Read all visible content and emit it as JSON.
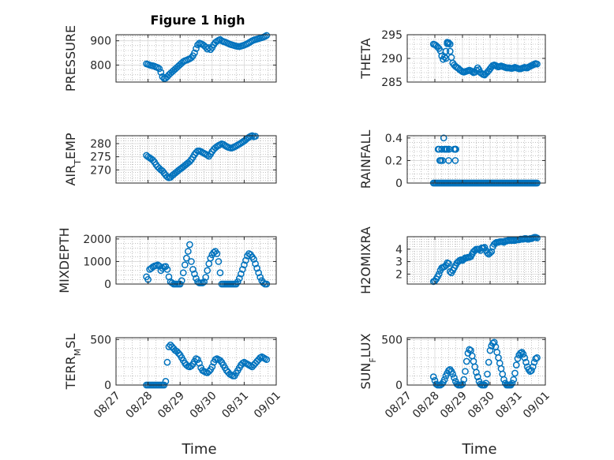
{
  "figure_title": "Figure 1 high",
  "colors": {
    "marker": "#0072BD",
    "axis": "#262626",
    "grid": "#9a9a9a"
  },
  "xticks": [
    "08/27",
    "08/28",
    "08/29",
    "08/30",
    "08/31",
    "09/01"
  ],
  "chart_data": [
    {
      "type": "scatter",
      "title": "Figure 1 high",
      "ylabel": "PRESSURE",
      "ylim": [
        730,
        925
      ],
      "yticks": [
        800,
        900
      ],
      "x": [
        0.95,
        1.0,
        1.05,
        1.1,
        1.15,
        1.2,
        1.25,
        1.3,
        1.35,
        1.4,
        1.45,
        1.5,
        1.55,
        1.6,
        1.65,
        1.7,
        1.75,
        1.8,
        1.85,
        1.9,
        1.95,
        2.0,
        2.05,
        2.1,
        2.15,
        2.2,
        2.25,
        2.3,
        2.35,
        2.4,
        2.45,
        2.5,
        2.55,
        2.6,
        2.65,
        2.7,
        2.75,
        2.8,
        2.85,
        2.9,
        2.95,
        3.0,
        3.05,
        3.1,
        3.15,
        3.2,
        3.25,
        3.3,
        3.35,
        3.4,
        3.45,
        3.5,
        3.55,
        3.6,
        3.65,
        3.7,
        3.75,
        3.8,
        3.85,
        3.9,
        3.95,
        4.0,
        4.05,
        4.1,
        4.15,
        4.2,
        4.25,
        4.3,
        4.35,
        4.4,
        4.45,
        4.5,
        4.55,
        4.6,
        4.65,
        4.7
      ],
      "y": [
        805,
        803,
        800,
        798,
        797,
        795,
        792,
        790,
        785,
        770,
        752,
        745,
        746,
        752,
        760,
        766,
        772,
        778,
        784,
        790,
        796,
        802,
        808,
        814,
        818,
        820,
        823,
        826,
        830,
        838,
        850,
        868,
        883,
        890,
        888,
        885,
        880,
        874,
        866,
        872,
        864,
        872,
        884,
        893,
        898,
        902,
        905,
        900,
        897,
        895,
        892,
        889,
        886,
        884,
        882,
        880,
        878,
        877,
        876,
        878,
        880,
        882,
        885,
        888,
        892,
        896,
        900,
        903,
        905,
        907,
        909,
        911,
        913,
        915,
        918,
        922
      ]
    },
    {
      "type": "scatter",
      "ylabel": "THETA",
      "ylim": [
        285,
        295
      ],
      "yticks": [
        285,
        290,
        295
      ],
      "x": [
        0.95,
        1.0,
        1.05,
        1.1,
        1.15,
        1.2,
        1.25,
        1.3,
        1.35,
        1.4,
        1.45,
        1.5,
        1.55,
        1.6,
        1.65,
        1.7,
        1.75,
        1.8,
        1.85,
        1.9,
        1.95,
        2.0,
        2.05,
        2.1,
        2.15,
        2.2,
        2.25,
        2.3,
        2.35,
        2.4,
        2.45,
        2.5,
        2.55,
        2.6,
        2.65,
        2.7,
        2.75,
        2.8,
        2.85,
        2.9,
        2.95,
        3.0,
        3.05,
        3.1,
        3.15,
        3.2,
        3.25,
        3.3,
        3.35,
        3.4,
        3.45,
        3.5,
        3.55,
        3.6,
        3.65,
        3.7,
        3.75,
        3.8,
        3.85,
        3.9,
        3.95,
        4.0,
        4.05,
        4.1,
        4.15,
        4.2,
        4.25,
        4.3,
        4.35,
        4.4,
        4.45,
        4.5,
        4.55,
        4.6,
        4.65,
        4.7,
        1.45,
        1.5,
        1.55,
        1.4
      ],
      "y": [
        293,
        292.9,
        292.7,
        292.4,
        292.1,
        291.6,
        290.5,
        289.8,
        290.3,
        291.5,
        293.1,
        293.2,
        291.5,
        290.2,
        289.0,
        288.6,
        288.3,
        288.1,
        287.9,
        287.6,
        287.4,
        287.2,
        287.1,
        287.2,
        287.3,
        287.4,
        287.5,
        287.4,
        287.2,
        287.0,
        287.1,
        287.5,
        288.0,
        287.6,
        287.0,
        286.8,
        286.6,
        286.5,
        286.8,
        287.1,
        287.4,
        287.8,
        288.2,
        288.5,
        288.6,
        288.5,
        288.3,
        288.2,
        288.3,
        288.4,
        288.3,
        288.2,
        288.1,
        288.0,
        288.0,
        288.0,
        287.9,
        287.9,
        288.0,
        288.1,
        288.0,
        287.9,
        287.8,
        287.8,
        287.9,
        288.0,
        288.1,
        288.0,
        288.0,
        288.2,
        288.3,
        288.5,
        288.6,
        288.8,
        288.9,
        288.8,
        293.4,
        293.3,
        293.0,
        290.0
      ]
    },
    {
      "type": "scatter",
      "ylabel": "AIR_TEMP",
      "ylim": [
        265,
        283
      ],
      "yticks": [
        270,
        275,
        280
      ],
      "x": [
        0.95,
        1.0,
        1.05,
        1.1,
        1.15,
        1.2,
        1.25,
        1.3,
        1.35,
        1.4,
        1.45,
        1.5,
        1.55,
        1.6,
        1.65,
        1.7,
        1.75,
        1.8,
        1.85,
        1.9,
        1.95,
        2.0,
        2.05,
        2.1,
        2.15,
        2.2,
        2.25,
        2.3,
        2.35,
        2.4,
        2.45,
        2.5,
        2.55,
        2.6,
        2.65,
        2.7,
        2.75,
        2.8,
        2.85,
        2.9,
        2.95,
        3.0,
        3.05,
        3.1,
        3.15,
        3.2,
        3.25,
        3.3,
        3.35,
        3.4,
        3.45,
        3.5,
        3.55,
        3.6,
        3.65,
        3.7,
        3.75,
        3.8,
        3.85,
        3.9,
        3.95,
        4.0,
        4.05,
        4.1,
        4.15,
        4.2,
        4.25,
        4.3,
        4.35,
        4.4,
        4.45,
        4.5,
        4.55,
        4.6,
        4.65,
        4.7
      ],
      "y": [
        275.5,
        275.0,
        274.6,
        274.2,
        273.7,
        273.0,
        272.0,
        271.2,
        270.6,
        270.0,
        269.6,
        268.8,
        268.0,
        267.4,
        267.0,
        267.2,
        267.8,
        268.3,
        268.8,
        269.3,
        269.8,
        270.3,
        270.7,
        271.2,
        271.7,
        272.2,
        272.7,
        273.2,
        273.9,
        274.8,
        275.8,
        276.6,
        277.2,
        277.2,
        277.0,
        276.6,
        276.3,
        276.0,
        275.6,
        275.2,
        276.0,
        277.0,
        277.8,
        278.4,
        278.9,
        279.3,
        279.6,
        279.9,
        279.7,
        279.3,
        278.9,
        278.6,
        278.4,
        278.3,
        278.5,
        278.8,
        279.1,
        279.5,
        279.8,
        280.2,
        280.6,
        281.0,
        281.5,
        282.0,
        282.4,
        282.8,
        283.0,
        282.6,
        282.8,
        283.1,
        283.3,
        283.4,
        283.5,
        283.6,
        283.6,
        283.7
      ]
    },
    {
      "type": "scatter",
      "ylabel": "RAINFALL",
      "ylim": [
        0,
        0.42
      ],
      "yticks": [
        0,
        0.2,
        0.4
      ],
      "x": [
        0.95,
        1.0,
        1.05,
        1.1,
        1.15,
        1.2,
        1.25,
        1.3,
        1.35,
        1.4,
        1.45,
        1.5,
        1.55,
        1.6,
        1.65,
        1.7,
        1.75,
        1.8,
        1.85,
        1.9,
        1.95,
        2.0,
        2.05,
        2.1,
        2.15,
        2.2,
        2.25,
        2.3,
        2.35,
        2.4,
        2.45,
        2.5,
        2.55,
        2.6,
        2.65,
        2.7,
        2.75,
        2.8,
        2.85,
        2.9,
        2.95,
        3.0,
        3.05,
        3.1,
        3.15,
        3.2,
        3.25,
        3.3,
        3.35,
        3.4,
        3.45,
        3.5,
        3.55,
        3.6,
        3.65,
        3.7,
        3.75,
        3.8,
        3.85,
        3.9,
        3.95,
        4.0,
        4.05,
        4.1,
        4.15,
        4.2,
        4.25,
        4.3,
        4.35,
        4.4,
        4.45,
        4.5,
        4.55,
        4.6,
        4.65,
        4.7,
        1.12,
        1.15,
        1.18,
        1.22,
        1.25,
        1.28,
        1.32,
        1.35,
        1.37,
        1.41,
        1.45,
        1.5,
        1.52,
        1.7,
        1.73,
        1.76,
        1.74
      ],
      "y": [
        0,
        0,
        0,
        0,
        0,
        0,
        0,
        0,
        0,
        0,
        0,
        0,
        0,
        0,
        0,
        0,
        0,
        0,
        0,
        0,
        0,
        0,
        0,
        0,
        0,
        0,
        0,
        0,
        0,
        0,
        0,
        0,
        0,
        0,
        0,
        0,
        0,
        0,
        0,
        0,
        0,
        0,
        0,
        0,
        0,
        0,
        0,
        0,
        0,
        0,
        0,
        0,
        0,
        0,
        0,
        0,
        0,
        0,
        0,
        0,
        0,
        0,
        0,
        0,
        0,
        0,
        0,
        0,
        0,
        0,
        0,
        0,
        0,
        0,
        0,
        0,
        0.3,
        0.3,
        0.2,
        0.2,
        0.3,
        0.2,
        0.4,
        0.3,
        0.3,
        0.3,
        0.3,
        0.2,
        0.3,
        0.3,
        0.3,
        0.3,
        0.2
      ]
    },
    {
      "type": "scatter",
      "ylabel": "MIXDEPTH",
      "ylim": [
        0,
        2100
      ],
      "yticks": [
        0,
        1000,
        2000
      ],
      "x": [
        0.95,
        1.0,
        1.05,
        1.1,
        1.15,
        1.2,
        1.25,
        1.3,
        1.35,
        1.4,
        1.45,
        1.5,
        1.55,
        1.6,
        1.65,
        1.7,
        1.75,
        1.8,
        1.85,
        1.9,
        1.95,
        2.0,
        2.05,
        2.1,
        2.15,
        2.2,
        2.25,
        2.3,
        2.35,
        2.4,
        2.45,
        2.5,
        2.55,
        2.6,
        2.65,
        2.7,
        2.75,
        2.8,
        2.85,
        2.9,
        2.95,
        3.0,
        3.05,
        3.1,
        3.15,
        3.2,
        3.25,
        3.3,
        3.35,
        3.4,
        3.45,
        3.5,
        3.55,
        3.6,
        3.65,
        3.7,
        3.75,
        3.8,
        3.85,
        3.9,
        3.95,
        4.0,
        4.05,
        4.1,
        4.15,
        4.2,
        4.25,
        4.3,
        4.35,
        4.4,
        4.45,
        4.5,
        4.55,
        4.6,
        4.65,
        4.7
      ],
      "y": [
        320,
        200,
        650,
        700,
        760,
        800,
        820,
        850,
        800,
        600,
        700,
        760,
        780,
        650,
        320,
        100,
        50,
        0,
        0,
        0,
        0,
        0,
        150,
        500,
        850,
        1150,
        1450,
        1750,
        1000,
        650,
        450,
        250,
        100,
        50,
        50,
        50,
        100,
        300,
        600,
        900,
        1150,
        1300,
        1400,
        1450,
        1350,
        1000,
        500,
        0,
        0,
        0,
        0,
        0,
        0,
        0,
        0,
        0,
        0,
        100,
        250,
        450,
        650,
        850,
        1050,
        1250,
        1350,
        1300,
        1200,
        1100,
        900,
        700,
        500,
        300,
        150,
        50,
        0,
        0
      ]
    },
    {
      "type": "scatter",
      "ylabel": "H2OMIXRA",
      "ylim": [
        1.2,
        5.0
      ],
      "yticks": [
        2,
        3,
        4
      ],
      "x": [
        0.95,
        1.0,
        1.05,
        1.1,
        1.15,
        1.2,
        1.25,
        1.3,
        1.35,
        1.4,
        1.45,
        1.5,
        1.55,
        1.6,
        1.65,
        1.7,
        1.75,
        1.8,
        1.85,
        1.9,
        1.95,
        2.0,
        2.05,
        2.1,
        2.15,
        2.2,
        2.25,
        2.3,
        2.35,
        2.4,
        2.45,
        2.5,
        2.55,
        2.6,
        2.65,
        2.7,
        2.75,
        2.8,
        2.85,
        2.9,
        2.95,
        3.0,
        3.05,
        3.1,
        3.15,
        3.2,
        3.25,
        3.3,
        3.35,
        3.4,
        3.45,
        3.5,
        3.55,
        3.6,
        3.65,
        3.7,
        3.75,
        3.8,
        3.85,
        3.9,
        3.95,
        4.0,
        4.05,
        4.1,
        4.15,
        4.2,
        4.25,
        4.3,
        4.35,
        4.4,
        4.45,
        4.5,
        4.55,
        4.6,
        4.65,
        4.7
      ],
      "y": [
        1.4,
        1.45,
        1.6,
        1.8,
        2.0,
        2.3,
        2.5,
        2.55,
        2.6,
        2.7,
        2.9,
        2.85,
        2.2,
        2.1,
        2.3,
        2.5,
        2.7,
        2.9,
        3.0,
        3.1,
        3.15,
        3.1,
        3.2,
        3.3,
        3.3,
        3.35,
        3.35,
        3.4,
        3.6,
        3.8,
        3.9,
        4.0,
        4.0,
        4.0,
        3.9,
        4.1,
        4.1,
        4.15,
        3.9,
        3.7,
        3.6,
        3.7,
        3.8,
        4.2,
        4.4,
        4.5,
        4.55,
        4.55,
        4.6,
        4.6,
        4.6,
        4.55,
        4.65,
        4.65,
        4.7,
        4.7,
        4.7,
        4.7,
        4.7,
        4.7,
        4.75,
        4.75,
        4.75,
        4.8,
        4.8,
        4.8,
        4.85,
        4.85,
        4.8,
        4.8,
        4.85,
        4.85,
        4.9,
        4.95,
        4.95,
        4.9
      ]
    },
    {
      "type": "scatter",
      "ylabel": "TERR_MSL",
      "ylim": [
        0,
        520
      ],
      "yticks": [
        0,
        500
      ],
      "x": [
        0.95,
        1.0,
        1.05,
        1.1,
        1.15,
        1.2,
        1.25,
        1.3,
        1.35,
        1.4,
        1.45,
        1.5,
        1.55,
        1.6,
        1.65,
        1.7,
        1.75,
        1.8,
        1.85,
        1.9,
        1.95,
        2.0,
        2.05,
        2.1,
        2.15,
        2.2,
        2.25,
        2.3,
        2.35,
        2.4,
        2.45,
        2.5,
        2.55,
        2.6,
        2.65,
        2.7,
        2.75,
        2.8,
        2.85,
        2.9,
        2.95,
        3.0,
        3.05,
        3.1,
        3.15,
        3.2,
        3.25,
        3.3,
        3.35,
        3.4,
        3.45,
        3.5,
        3.55,
        3.6,
        3.65,
        3.7,
        3.75,
        3.8,
        3.85,
        3.9,
        3.95,
        4.0,
        4.05,
        4.1,
        4.15,
        4.2,
        4.25,
        4.3,
        4.35,
        4.4,
        4.45,
        4.5,
        4.55,
        4.6,
        4.65,
        4.7
      ],
      "y": [
        0,
        0,
        0,
        0,
        0,
        0,
        0,
        0,
        0,
        0,
        0,
        0,
        40,
        250,
        420,
        440,
        420,
        400,
        380,
        370,
        350,
        330,
        300,
        270,
        240,
        220,
        205,
        200,
        210,
        230,
        260,
        290,
        280,
        240,
        190,
        160,
        150,
        140,
        135,
        150,
        170,
        200,
        250,
        280,
        290,
        280,
        270,
        250,
        220,
        190,
        160,
        140,
        120,
        110,
        100,
        100,
        130,
        160,
        190,
        220,
        240,
        250,
        240,
        230,
        220,
        210,
        200,
        220,
        240,
        260,
        280,
        300,
        310,
        300,
        290,
        280
      ]
    },
    {
      "type": "scatter",
      "ylabel": "SUN_FLUX",
      "ylim": [
        0,
        520
      ],
      "yticks": [
        0,
        500
      ],
      "x": [
        0.95,
        1.0,
        1.05,
        1.1,
        1.15,
        1.2,
        1.25,
        1.3,
        1.35,
        1.4,
        1.45,
        1.5,
        1.55,
        1.6,
        1.65,
        1.7,
        1.75,
        1.8,
        1.85,
        1.9,
        1.95,
        2.0,
        2.05,
        2.1,
        2.15,
        2.2,
        2.25,
        2.3,
        2.35,
        2.4,
        2.45,
        2.5,
        2.55,
        2.6,
        2.65,
        2.7,
        2.75,
        2.8,
        2.85,
        2.9,
        2.95,
        3.0,
        3.05,
        3.1,
        3.15,
        3.2,
        3.25,
        3.3,
        3.35,
        3.4,
        3.45,
        3.5,
        3.55,
        3.6,
        3.65,
        3.7,
        3.75,
        3.8,
        3.85,
        3.9,
        3.95,
        4.0,
        4.05,
        4.1,
        4.15,
        4.2,
        4.25,
        4.3,
        4.35,
        4.4,
        4.45,
        4.5,
        4.55,
        4.6,
        4.65,
        4.7
      ],
      "y": [
        90,
        50,
        10,
        0,
        0,
        0,
        10,
        30,
        60,
        100,
        130,
        160,
        170,
        150,
        120,
        80,
        40,
        10,
        0,
        0,
        0,
        10,
        60,
        150,
        260,
        350,
        390,
        380,
        320,
        260,
        200,
        140,
        90,
        40,
        10,
        0,
        0,
        0,
        20,
        120,
        250,
        380,
        430,
        460,
        470,
        420,
        360,
        300,
        240,
        180,
        120,
        60,
        20,
        0,
        0,
        0,
        0,
        20,
        60,
        130,
        220,
        290,
        330,
        350,
        360,
        340,
        300,
        250,
        200,
        170,
        150,
        160,
        200,
        250,
        290,
        300
      ]
    }
  ],
  "xlabels": [
    "Time",
    "Time"
  ]
}
